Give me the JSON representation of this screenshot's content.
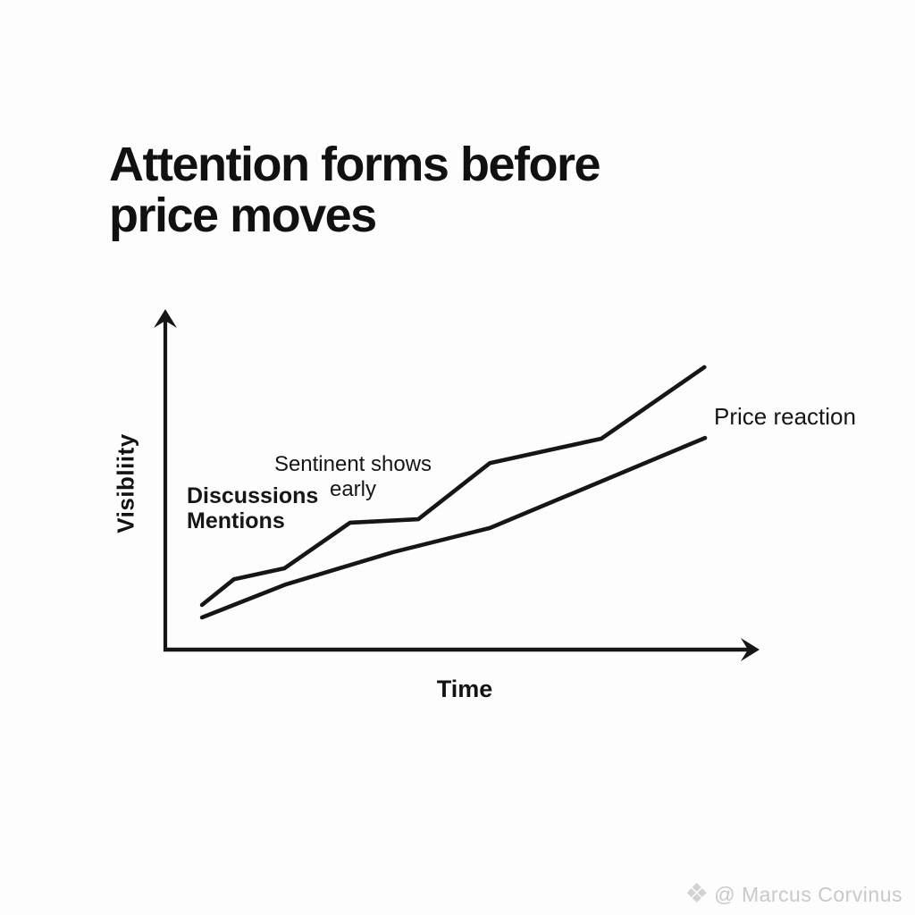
{
  "page": {
    "background": "#fdfdfd",
    "title": "Attention forms before\nprice moves"
  },
  "chart_data": {
    "type": "line",
    "title": "Attention forms before price moves",
    "xlabel": "Time",
    "ylabel": "Visibliity",
    "x_range": [
      0,
      1
    ],
    "y_range": [
      0,
      1
    ],
    "grid": false,
    "legend": "none",
    "axis_color": "#161616",
    "line_color": "#161616",
    "series": [
      {
        "name": "attention",
        "label": "Attention (Discussions / Mentions, Sentinent shows early)",
        "points": [
          [
            0.062,
            0.132
          ],
          [
            0.116,
            0.208
          ],
          [
            0.201,
            0.24
          ],
          [
            0.312,
            0.375
          ],
          [
            0.427,
            0.385
          ],
          [
            0.548,
            0.551
          ],
          [
            0.736,
            0.623
          ],
          [
            0.91,
            0.834
          ]
        ]
      },
      {
        "name": "price",
        "label": "Price reaction",
        "points": [
          [
            0.062,
            0.095
          ],
          [
            0.204,
            0.193
          ],
          [
            0.385,
            0.288
          ],
          [
            0.548,
            0.359
          ],
          [
            0.911,
            0.625
          ]
        ]
      }
    ],
    "annotations": [
      {
        "id": "discussions-mentions",
        "text": "Discussions\nMentions"
      },
      {
        "id": "sentiment-early",
        "text": "Sentinent shows\nearly"
      },
      {
        "id": "price-reaction",
        "text": "Price reaction"
      }
    ]
  },
  "watermark": {
    "icon": "diamond-ornament",
    "text": "@ Marcus Corvinus",
    "color": "#c9c9c9"
  }
}
